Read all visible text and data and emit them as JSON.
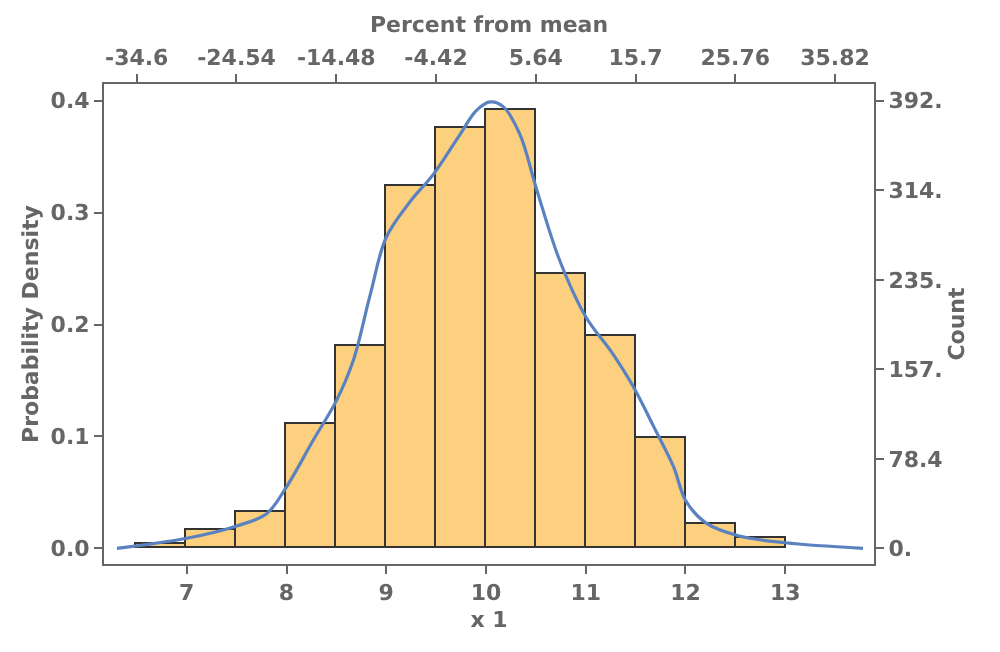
{
  "chart_data": {
    "type": "histogram",
    "xlabel": "x 1",
    "ylabel": "Probability Density",
    "y2label": "Count",
    "x2label": "Percent from mean",
    "bins": [
      6.5,
      7,
      7.5,
      8,
      8.5,
      9,
      9.5,
      10,
      10.5,
      11,
      11.5,
      12,
      12.5,
      13
    ],
    "values": [
      0.004,
      0.016,
      0.032,
      0.112,
      0.18,
      0.324,
      0.375,
      0.392,
      0.246,
      0.189,
      0.098,
      0.021,
      0.009
    ],
    "color": "#fdd07f",
    "series": [
      {
        "type": "line",
        "color": "#5b82c0",
        "x": [
          6.3,
          7,
          7.5,
          7.8,
          8.0,
          8.27,
          8.5,
          8.67,
          8.84,
          9.0,
          9.24,
          9.47,
          9.74,
          9.9,
          10.04,
          10.17,
          10.34,
          10.5,
          10.74,
          11.0,
          11.27,
          11.48,
          11.68,
          11.88,
          12.0,
          12.2,
          12.54,
          13.0,
          13.78
        ],
        "values": [
          0,
          0.009,
          0.02,
          0.031,
          0.055,
          0.097,
          0.132,
          0.168,
          0.227,
          0.278,
          0.31,
          0.334,
          0.37,
          0.391,
          0.399,
          0.395,
          0.37,
          0.323,
          0.257,
          0.207,
          0.174,
          0.144,
          0.109,
          0.073,
          0.043,
          0.023,
          0.011,
          0.005,
          0
        ]
      }
    ],
    "xlim": [
      6.17,
      13.89
    ],
    "xticks": [
      7,
      8,
      9,
      10,
      11,
      12,
      13
    ],
    "x2lim": [
      -37.9,
      39.75
    ],
    "x2ticks": [
      -34.6,
      -24.54,
      -14.48,
      -4.42,
      5.64,
      15.7,
      25.76,
      35.82
    ],
    "ylim": [
      -0.014,
      0.415
    ],
    "yticks": [
      {
        "value": 0,
        "label": "0.0"
      },
      0.1,
      0.2,
      0.3,
      0.4
    ],
    "y2lim": [
      -13.7,
      406.7
    ],
    "y2ticks": [
      {
        "value": 0,
        "label": "0."
      },
      78.4,
      {
        "value": 156.8,
        "label": "157."
      },
      {
        "value": 235.2,
        "label": "235."
      },
      {
        "value": 313.6,
        "label": "314."
      },
      {
        "value": 392,
        "label": "392."
      }
    ],
    "marker": "none",
    "line_style": "solid"
  }
}
